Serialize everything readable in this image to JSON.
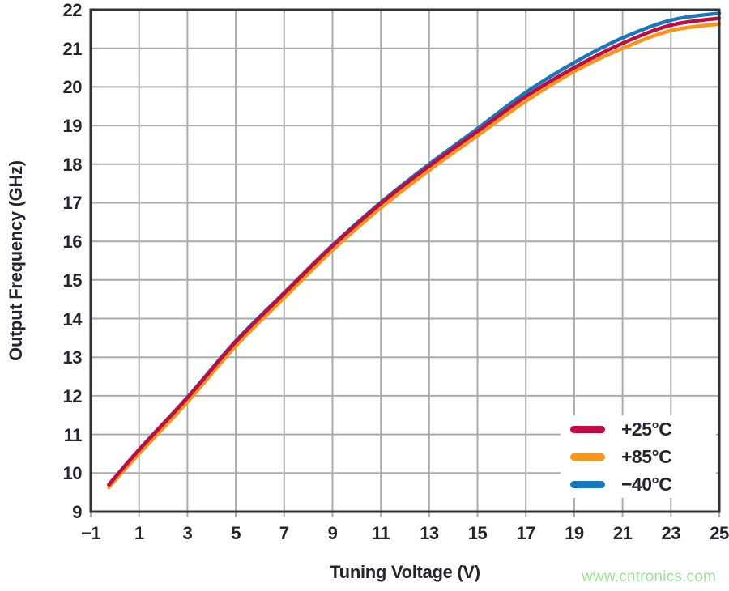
{
  "figure": {
    "watermark": "www.cntronics.com"
  },
  "colors": {
    "grid": "#a9abad",
    "border": "#303339",
    "tick_stub": "#a9abad",
    "text": "#23262e",
    "background": "#ffffff",
    "watermark": "#a0de9d"
  },
  "chart_data": {
    "type": "line",
    "title": "",
    "xlabel": "Tuning Voltage (V)",
    "ylabel": "Output Frequency (GHz)",
    "xlim": [
      -1,
      25
    ],
    "ylim": [
      9,
      22
    ],
    "grid": true,
    "legend_position": "inside lower right",
    "x_ticks": [
      -1,
      1,
      3,
      5,
      7,
      9,
      11,
      13,
      15,
      17,
      19,
      21,
      23,
      25
    ],
    "x_tick_labels": [
      "−1",
      "1",
      "3",
      "5",
      "7",
      "9",
      "11",
      "13",
      "15",
      "17",
      "19",
      "21",
      "23",
      "25"
    ],
    "y_ticks": [
      9,
      10,
      11,
      12,
      13,
      14,
      15,
      16,
      17,
      18,
      19,
      20,
      21,
      22
    ],
    "y_tick_labels": [
      "9",
      "10",
      "11",
      "12",
      "13",
      "14",
      "15",
      "16",
      "17",
      "18",
      "19",
      "20",
      "21",
      "22"
    ],
    "x": [
      -0.25,
      1,
      3,
      5,
      7,
      9,
      11,
      13,
      15,
      17,
      19,
      21,
      23,
      25
    ],
    "series": [
      {
        "name": "+25°C",
        "color": "#be0d45",
        "values": [
          9.7,
          10.6,
          11.95,
          13.4,
          14.65,
          15.88,
          16.98,
          17.95,
          18.85,
          19.75,
          20.5,
          21.13,
          21.6,
          21.78
        ]
      },
      {
        "name": "+85°C",
        "color": "#f8951d",
        "values": [
          9.63,
          10.5,
          11.84,
          13.29,
          14.54,
          15.77,
          16.87,
          17.84,
          18.74,
          19.63,
          20.4,
          21.0,
          21.46,
          21.63
        ]
      },
      {
        "name": "−40°C",
        "color": "#1b77bc",
        "values": [
          9.7,
          10.61,
          11.96,
          13.42,
          14.67,
          15.9,
          17.01,
          18.0,
          18.92,
          19.86,
          20.63,
          21.27,
          21.73,
          21.91
        ]
      }
    ]
  }
}
